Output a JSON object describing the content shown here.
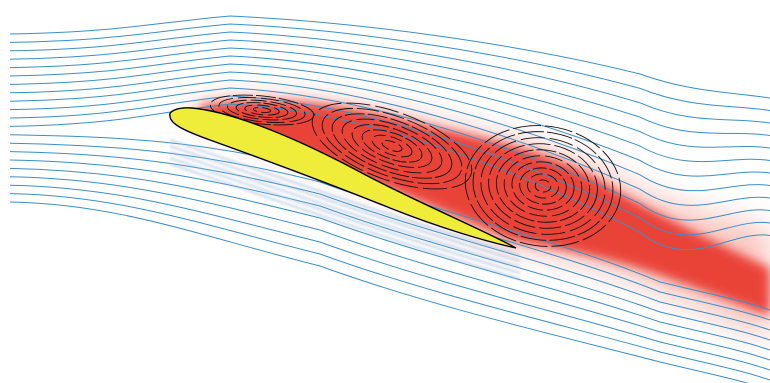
{
  "diagram": {
    "subject": "airfoil-stall-flow",
    "elements": [
      {
        "name": "freestream-streamlines",
        "kind": "streamline-field",
        "count": 21
      },
      {
        "name": "separated-wake",
        "kind": "shaded-region"
      },
      {
        "name": "vortex-core-1",
        "kind": "recirculation-eddy"
      },
      {
        "name": "vortex-core-2",
        "kind": "recirculation-eddy"
      },
      {
        "name": "vortex-core-3",
        "kind": "recirculation-eddy"
      },
      {
        "name": "airfoil",
        "kind": "body"
      }
    ]
  },
  "colors": {
    "background": "#ffffff",
    "streamline": "#3a8fc8",
    "streamline_shadow": "#9bb6d6",
    "wake_core": "#e8352a",
    "wake_edge": "#f7b4aa",
    "vortex_line": "#111111",
    "airfoil_fill": "#f0ec3a",
    "airfoil_outline": "#000000"
  }
}
